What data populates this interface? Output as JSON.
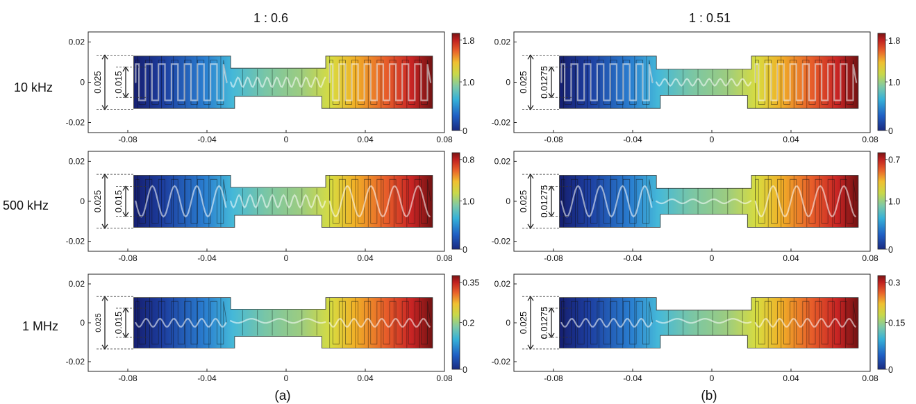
{
  "column_titles": [
    "1 : 0.6",
    "1 : 0.51"
  ],
  "row_labels": [
    "10 kHz",
    "500 kHz",
    "1 MHz"
  ],
  "panel_labels": [
    "(a)",
    "(b)"
  ],
  "x_ticks": [
    "-0.08",
    "-0.04",
    "0",
    "0.04",
    "0.08"
  ],
  "y_ticks": [
    "0.02",
    "0",
    "-0.02"
  ],
  "dimensions": {
    "left": {
      "outer": "0.025",
      "inner": "0.015"
    },
    "right": {
      "outer": "0.025",
      "inner": "0.01275"
    }
  },
  "colorbars": [
    [
      "1.8",
      "1.0",
      "0"
    ],
    [
      "1.8",
      "1.0",
      "0"
    ],
    [
      "0.8",
      "1.0",
      "0"
    ],
    [
      "0.7",
      "1.0",
      "0"
    ],
    [
      "0.35",
      "0.2",
      "0"
    ],
    [
      "0.3",
      "0.15",
      "0"
    ]
  ],
  "x_range": [
    -0.1,
    0.08
  ],
  "y_range": [
    -0.025,
    0.025
  ],
  "colormap": [
    "#1a2a80",
    "#1f5fc4",
    "#36b1d8",
    "#7dc9a8",
    "#c8d94a",
    "#f0c030",
    "#e8602a",
    "#c02020",
    "#7a1414"
  ]
}
